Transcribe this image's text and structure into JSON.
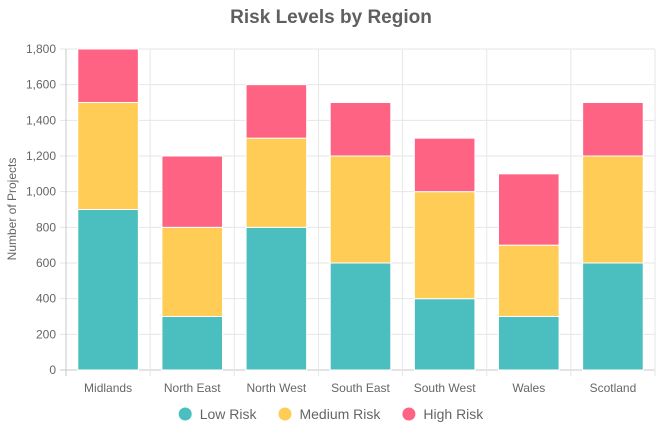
{
  "chart_data": {
    "type": "bar",
    "stacked": true,
    "title": "Risk Levels by Region",
    "xlabel": "",
    "ylabel": "Number of Projects",
    "categories": [
      "Midlands",
      "North East",
      "North West",
      "South East",
      "South West",
      "Wales",
      "Scotland"
    ],
    "series": [
      {
        "name": "Low Risk",
        "color": "#4bbfbf",
        "values": [
          900,
          300,
          800,
          600,
          400,
          300,
          600
        ]
      },
      {
        "name": "Medium Risk",
        "color": "#ffcd56",
        "values": [
          600,
          500,
          500,
          600,
          600,
          400,
          600
        ]
      },
      {
        "name": "High Risk",
        "color": "#ff6384",
        "values": [
          300,
          400,
          300,
          300,
          300,
          400,
          300
        ]
      }
    ],
    "ylim": [
      0,
      1800
    ],
    "yticks": [
      "0",
      "200",
      "400",
      "600",
      "800",
      "1,000",
      "1,200",
      "1,400",
      "1,600",
      "1,800"
    ],
    "grid": true,
    "legend_position": "bottom"
  }
}
